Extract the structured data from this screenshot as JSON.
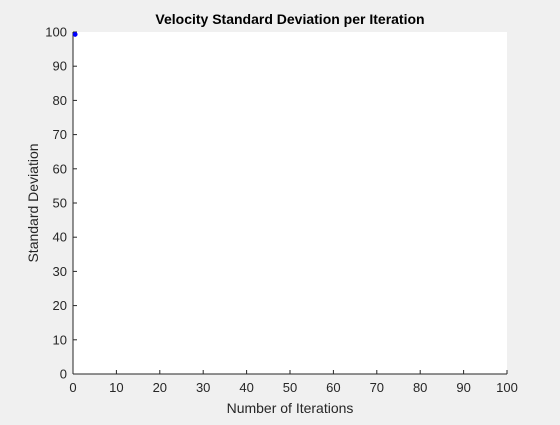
{
  "chart_data": {
    "type": "scatter",
    "title": "Velocity Standard Deviation per Iteration",
    "xlabel": "Number of Iterations",
    "ylabel": "Standard Deviation",
    "xlim": [
      0,
      100
    ],
    "ylim": [
      0,
      100
    ],
    "xticks": [
      0,
      10,
      20,
      30,
      40,
      50,
      60,
      70,
      80,
      90,
      100
    ],
    "yticks": [
      0,
      10,
      20,
      30,
      40,
      50,
      60,
      70,
      80,
      90,
      100
    ],
    "grid": false,
    "series": [
      {
        "x": [
          0.5
        ],
        "y": [
          99.3
        ],
        "color": "#0000ff"
      }
    ]
  },
  "colors": {
    "figure_background": "#f0f0f0",
    "axes_background": "#ffffff",
    "axis_line": "#262626",
    "marker": "#0000ff"
  }
}
